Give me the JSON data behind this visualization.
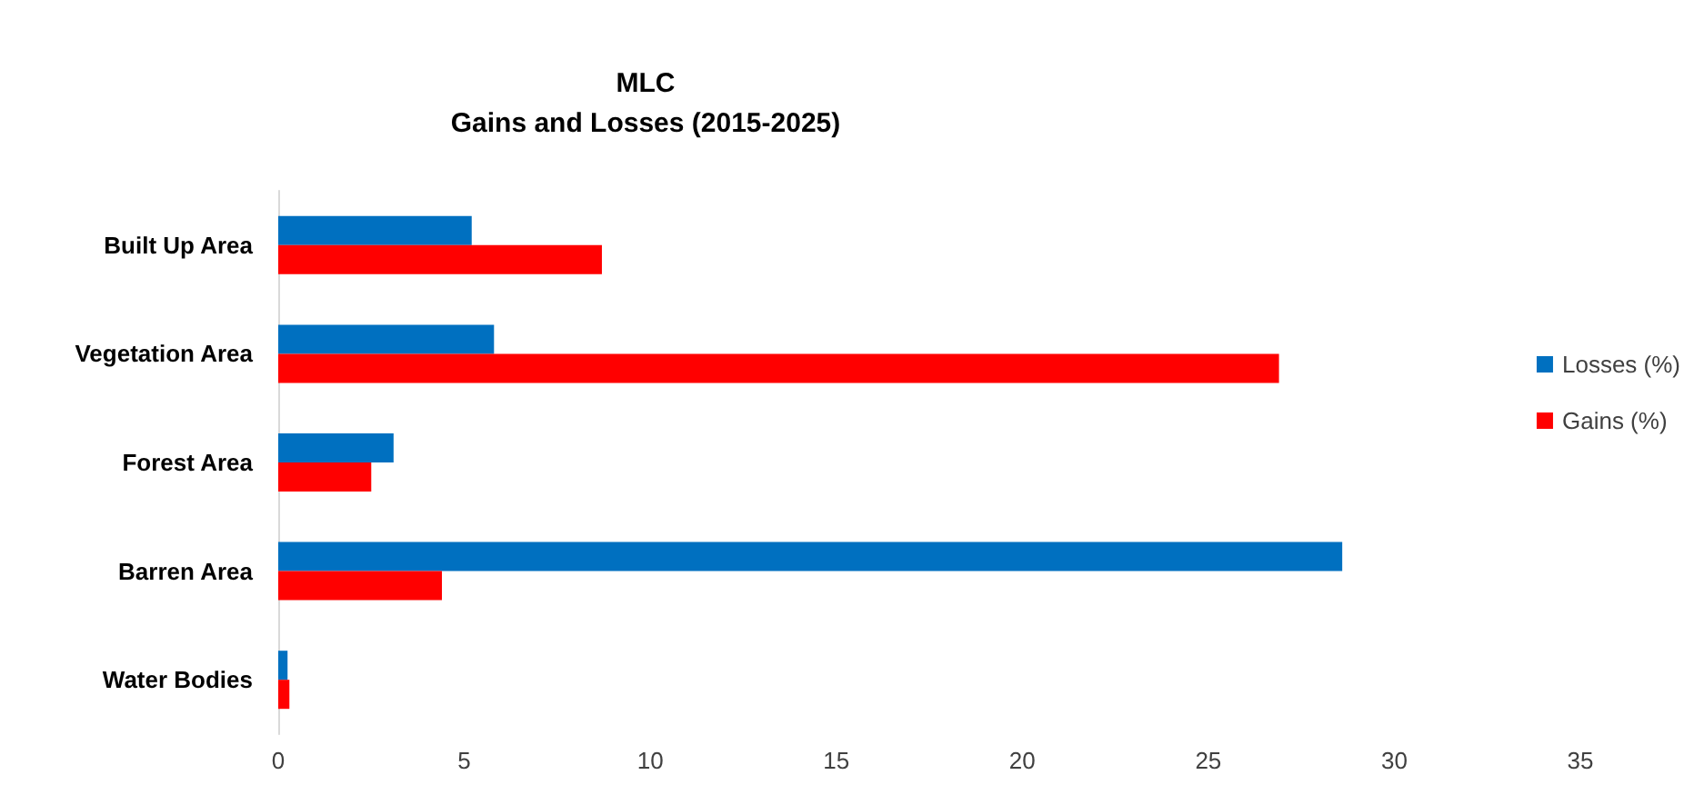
{
  "chart_data": {
    "type": "bar",
    "orientation": "horizontal",
    "title": "MLC\nGains and Losses (2015-2025)",
    "categories": [
      "Built Up Area",
      "Vegetation Area",
      "Forest Area",
      "Barren Area",
      "Water Bodies"
    ],
    "series": [
      {
        "name": "Losses (%)",
        "color": "#0070c0",
        "values": [
          5.2,
          5.8,
          3.1,
          28.6,
          0.25
        ]
      },
      {
        "name": "Gains (%)",
        "color": "#ff0000",
        "values": [
          8.7,
          26.9,
          2.5,
          4.4,
          0.3
        ]
      }
    ],
    "xlim": [
      0,
      35
    ],
    "xticks": [
      0,
      5,
      10,
      15,
      20,
      25,
      30,
      35
    ],
    "grid": false,
    "legend": "right"
  }
}
